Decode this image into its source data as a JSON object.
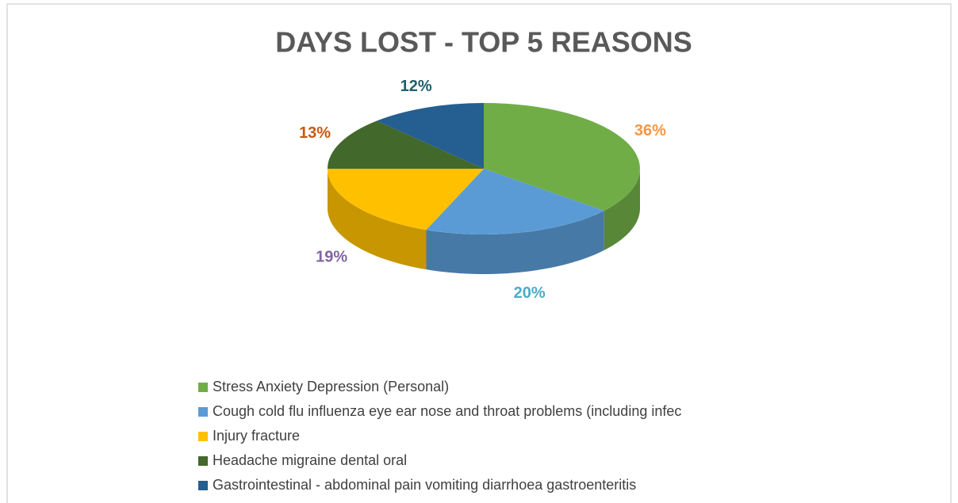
{
  "chart_data": {
    "type": "pie3d",
    "title": "DAYS LOST - TOP 5 REASONS",
    "categories": [
      "Stress Anxiety Depression (Personal)",
      "Cough cold flu influenza eye ear nose and throat problems (including infec",
      "Injury fracture",
      "Headache migraine dental oral",
      "Gastrointestinal -  abdominal pain vomiting diarrhoea gastroenteritis"
    ],
    "values": [
      36,
      20,
      19,
      13,
      12
    ],
    "value_labels": [
      "36%",
      "20%",
      "19%",
      "13%",
      "12%"
    ],
    "colors": [
      "#70ad47",
      "#5b9bd5",
      "#ffc000",
      "#43682b",
      "#255e91"
    ],
    "value_label_colors": [
      "#f79646",
      "#4bacc6",
      "#8064a2",
      "#c55a11",
      "#215f6e"
    ],
    "legend": "bottom"
  }
}
